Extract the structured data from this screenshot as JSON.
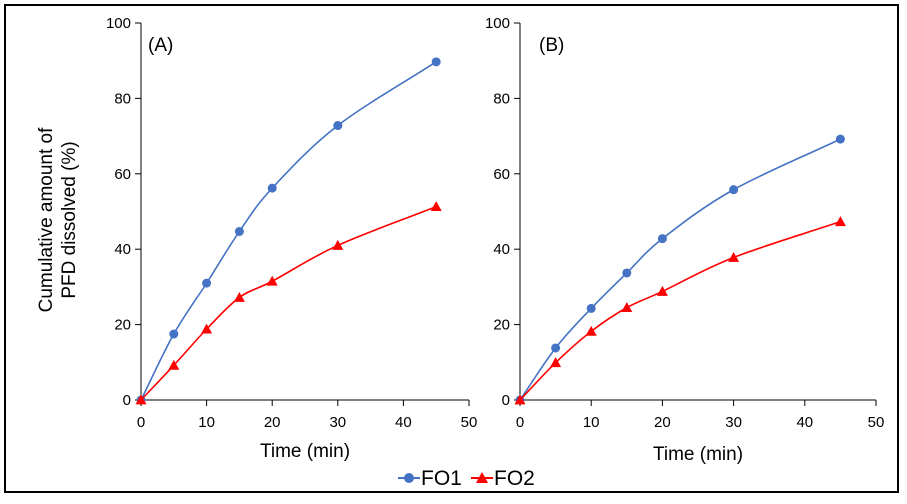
{
  "y_axis_label_lines": [
    "Cumulative amount of",
    "PFD dissolved (%)"
  ],
  "legend": {
    "items": [
      {
        "label": "FO1",
        "color": "#4472C4",
        "marker": "circle"
      },
      {
        "label": "FO2",
        "color": "#FF0000",
        "marker": "triangle"
      }
    ]
  },
  "chart_data": [
    {
      "type": "line",
      "panel_label": "(A)",
      "xlabel": "Time (min)",
      "ylabel": "Cumulative amount of PFD dissolved (%)",
      "xlim": [
        0,
        50
      ],
      "ylim": [
        0,
        100
      ],
      "x_ticks": [
        0,
        10,
        20,
        30,
        40,
        50
      ],
      "y_ticks": [
        0,
        20,
        40,
        60,
        80,
        100
      ],
      "grid": false,
      "x": [
        0,
        5,
        10,
        15,
        20,
        30,
        45
      ],
      "series": [
        {
          "name": "FO1",
          "color": "#4472C4",
          "marker": "circle",
          "values": [
            0,
            17.5,
            31,
            44.7,
            56.2,
            72.8,
            89.7
          ]
        },
        {
          "name": "FO2",
          "color": "#FF0000",
          "marker": "triangle",
          "values": [
            0,
            9.2,
            18.8,
            27.2,
            31.5,
            41,
            51.3
          ]
        }
      ]
    },
    {
      "type": "line",
      "panel_label": "(B)",
      "xlabel": "Time (min)",
      "ylabel": "",
      "xlim": [
        0,
        50
      ],
      "ylim": [
        0,
        100
      ],
      "x_ticks": [
        0,
        10,
        20,
        30,
        40,
        50
      ],
      "y_ticks": [
        0,
        20,
        40,
        60,
        80,
        100
      ],
      "grid": false,
      "x": [
        0,
        5,
        10,
        15,
        20,
        30,
        45
      ],
      "series": [
        {
          "name": "FO1",
          "color": "#4472C4",
          "marker": "circle",
          "values": [
            0,
            13.8,
            24.3,
            33.7,
            42.8,
            55.8,
            69.2
          ]
        },
        {
          "name": "FO2",
          "color": "#FF0000",
          "marker": "triangle",
          "values": [
            0,
            9.9,
            18.2,
            24.5,
            28.8,
            37.8,
            47.3
          ]
        }
      ]
    }
  ]
}
